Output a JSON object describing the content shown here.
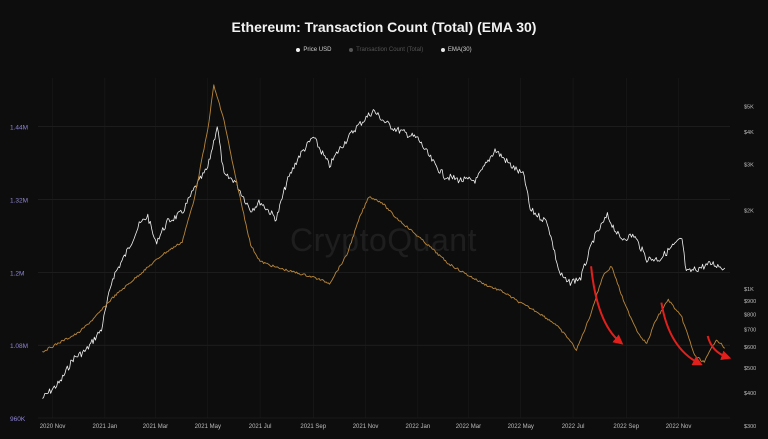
{
  "chart_data": {
    "type": "line",
    "title": "Ethereum: Transaction Count (Total) (EMA 30)",
    "legend": {
      "placement": "top-center",
      "entries": [
        "Price USD",
        "Transaction Count (Total)",
        "EMA(30)"
      ]
    },
    "watermark": "CryptoQuant",
    "x_axis": {
      "range": [
        "2020-10-15",
        "2022-12-31"
      ],
      "ticks": [
        "2020 Nov",
        "2021 Jan",
        "2021 Mar",
        "2021 May",
        "2021 Jul",
        "2021 Sep",
        "2021 Nov",
        "2022 Jan",
        "2022 Mar",
        "2022 May",
        "2022 Jul",
        "2022 Sep",
        "2022 Nov"
      ]
    },
    "y_left": {
      "label": "Transaction Count",
      "range": [
        960000,
        1520000
      ],
      "ticks": [
        "960K",
        "1.08M",
        "1.2M",
        "1.32M",
        "1.44M"
      ],
      "tick_values": [
        960000,
        1080000,
        1200000,
        1320000,
        1440000
      ]
    },
    "y_right": {
      "label": "Price USD",
      "scale": "log",
      "range": [
        320,
        6400
      ],
      "ticks": [
        "$5K",
        "$4K",
        "$3K",
        "$2K",
        "$1K",
        "$900",
        "$800",
        "$700",
        "$600",
        "$500",
        "$400",
        "$300"
      ],
      "tick_values": [
        5000,
        4000,
        3000,
        2000,
        1000,
        900,
        800,
        700,
        600,
        500,
        400,
        300
      ]
    },
    "grid": true,
    "series": [
      {
        "name": "Price USD",
        "axis": "right",
        "color": "#f2f2f2",
        "points": [
          [
            "2020-10-20",
            380
          ],
          [
            "2020-11-10",
            440
          ],
          [
            "2020-11-25",
            540
          ],
          [
            "2020-12-10",
            580
          ],
          [
            "2020-12-28",
            700
          ],
          [
            "2021-01-10",
            1100
          ],
          [
            "2021-01-25",
            1350
          ],
          [
            "2021-02-10",
            1750
          ],
          [
            "2021-02-20",
            1900
          ],
          [
            "2021-03-01",
            1500
          ],
          [
            "2021-03-15",
            1800
          ],
          [
            "2021-04-01",
            1950
          ],
          [
            "2021-04-15",
            2400
          ],
          [
            "2021-05-01",
            2900
          ],
          [
            "2021-05-12",
            4200
          ],
          [
            "2021-05-20",
            2700
          ],
          [
            "2021-06-01",
            2600
          ],
          [
            "2021-06-20",
            2000
          ],
          [
            "2021-07-01",
            2150
          ],
          [
            "2021-07-20",
            1850
          ],
          [
            "2021-08-01",
            2550
          ],
          [
            "2021-08-15",
            3200
          ],
          [
            "2021-09-01",
            3800
          ],
          [
            "2021-09-20",
            2950
          ],
          [
            "2021-10-01",
            3400
          ],
          [
            "2021-10-20",
            4100
          ],
          [
            "2021-11-10",
            4800
          ],
          [
            "2021-11-25",
            4300
          ],
          [
            "2021-12-05",
            4100
          ],
          [
            "2021-12-20",
            3900
          ],
          [
            "2022-01-01",
            3750
          ],
          [
            "2022-01-20",
            3000
          ],
          [
            "2022-02-01",
            2700
          ],
          [
            "2022-02-20",
            2600
          ],
          [
            "2022-03-10",
            2600
          ],
          [
            "2022-04-01",
            3400
          ],
          [
            "2022-04-20",
            2950
          ],
          [
            "2022-05-05",
            2700
          ],
          [
            "2022-05-12",
            2000
          ],
          [
            "2022-06-01",
            1800
          ],
          [
            "2022-06-15",
            1150
          ],
          [
            "2022-06-25",
            1050
          ],
          [
            "2022-07-10",
            1100
          ],
          [
            "2022-07-25",
            1550
          ],
          [
            "2022-08-10",
            1900
          ],
          [
            "2022-08-25",
            1550
          ],
          [
            "2022-09-10",
            1600
          ],
          [
            "2022-09-25",
            1300
          ],
          [
            "2022-10-10",
            1300
          ],
          [
            "2022-10-25",
            1450
          ],
          [
            "2022-11-05",
            1550
          ],
          [
            "2022-11-10",
            1150
          ],
          [
            "2022-11-25",
            1200
          ],
          [
            "2022-12-10",
            1250
          ],
          [
            "2022-12-25",
            1200
          ]
        ]
      },
      {
        "name": "Transaction Count (Total)",
        "axis": "left",
        "color": "#b8863a",
        "points": [
          [
            "2020-10-20",
            1069000
          ],
          [
            "2020-11-10",
            1085000
          ],
          [
            "2020-12-01",
            1100000
          ],
          [
            "2020-12-20",
            1125000
          ],
          [
            "2021-01-10",
            1158000
          ],
          [
            "2021-02-01",
            1185000
          ],
          [
            "2021-02-20",
            1208000
          ],
          [
            "2021-03-10",
            1230000
          ],
          [
            "2021-04-01",
            1250000
          ],
          [
            "2021-04-15",
            1320000
          ],
          [
            "2021-05-01",
            1435000
          ],
          [
            "2021-05-08",
            1508000
          ],
          [
            "2021-05-20",
            1450000
          ],
          [
            "2021-06-01",
            1365000
          ],
          [
            "2021-06-20",
            1245000
          ],
          [
            "2021-07-01",
            1218000
          ],
          [
            "2021-07-20",
            1208000
          ],
          [
            "2021-08-10",
            1200000
          ],
          [
            "2021-09-01",
            1192000
          ],
          [
            "2021-09-20",
            1182000
          ],
          [
            "2021-10-10",
            1228000
          ],
          [
            "2021-10-25",
            1290000
          ],
          [
            "2021-11-05",
            1325000
          ],
          [
            "2021-11-20",
            1315000
          ],
          [
            "2021-12-05",
            1292000
          ],
          [
            "2021-12-25",
            1268000
          ],
          [
            "2022-01-15",
            1242000
          ],
          [
            "2022-02-05",
            1215000
          ],
          [
            "2022-02-25",
            1198000
          ],
          [
            "2022-03-20",
            1180000
          ],
          [
            "2022-04-10",
            1168000
          ],
          [
            "2022-04-30",
            1150000
          ],
          [
            "2022-05-20",
            1135000
          ],
          [
            "2022-06-10",
            1115000
          ],
          [
            "2022-06-25",
            1092000
          ],
          [
            "2022-07-05",
            1072000
          ],
          [
            "2022-07-20",
            1125000
          ],
          [
            "2022-08-05",
            1195000
          ],
          [
            "2022-08-15",
            1210000
          ],
          [
            "2022-08-30",
            1148000
          ],
          [
            "2022-09-15",
            1100000
          ],
          [
            "2022-09-25",
            1082000
          ],
          [
            "2022-10-05",
            1120000
          ],
          [
            "2022-10-20",
            1155000
          ],
          [
            "2022-11-05",
            1125000
          ],
          [
            "2022-11-20",
            1062000
          ],
          [
            "2022-12-01",
            1052000
          ],
          [
            "2022-12-15",
            1090000
          ],
          [
            "2022-12-25",
            1075000
          ]
        ]
      }
    ],
    "annotations": [
      {
        "type": "arrow",
        "color": "#e0201c",
        "from": [
          "2022-07-22",
          1210000
        ],
        "to": [
          "2022-08-25",
          1085000
        ]
      },
      {
        "type": "arrow",
        "color": "#e0201c",
        "from": [
          "2022-10-12",
          1150000
        ],
        "to": [
          "2022-11-25",
          1050000
        ]
      },
      {
        "type": "arrow",
        "color": "#e0201c",
        "from": [
          "2022-12-05",
          1095000
        ],
        "to": [
          "2022-12-28",
          1060000
        ]
      }
    ]
  }
}
